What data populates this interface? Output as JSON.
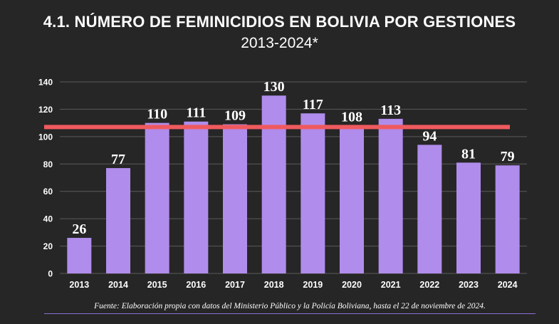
{
  "title": "4.1. NÚMERO DE FEMINICIDIOS EN BOLIVIA POR GESTIONES",
  "subtitle": "2013-2024*",
  "source": "Fuente: Elaboración propia con datos del Ministerio Público y la Policía Boliviana, hasta el 22 de noviembre de 2024.",
  "colors": {
    "background": "#262626",
    "bar": "#b08cec",
    "reference_line": "#ef5a5e",
    "gridline": "#5a5a5a",
    "text": "#ffffff"
  },
  "chart_data": {
    "type": "bar",
    "title": "4.1. NÚMERO DE FEMINICIDIOS EN BOLIVIA POR GESTIONES",
    "subtitle": "2013-2024*",
    "xlabel": "",
    "ylabel": "",
    "categories": [
      "2013",
      "2014",
      "2015",
      "2016",
      "2017",
      "2018",
      "2019",
      "2020",
      "2021",
      "2022",
      "2023",
      "2024"
    ],
    "values": [
      26,
      77,
      110,
      111,
      109,
      130,
      117,
      108,
      113,
      94,
      81,
      79
    ],
    "ylim": [
      0,
      140
    ],
    "yticks": [
      0,
      20,
      40,
      60,
      80,
      100,
      120,
      140
    ],
    "grid": true,
    "reference_line": {
      "value": 107,
      "label": ""
    }
  }
}
